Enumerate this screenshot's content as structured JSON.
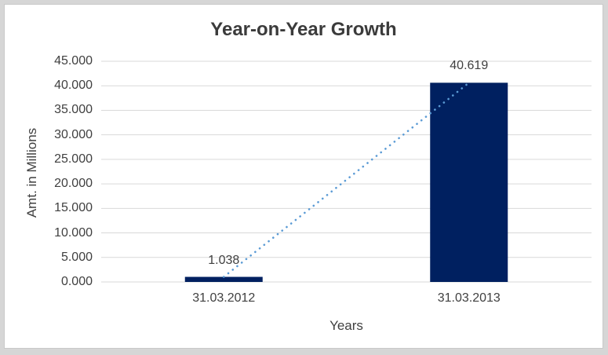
{
  "chart_data": {
    "type": "bar",
    "title": "Year-on-Year Growth",
    "xlabel": "Years",
    "ylabel": "Amt. in Millions",
    "categories": [
      "31.03.2012",
      "31.03.2013"
    ],
    "values": [
      1.038,
      40.619
    ],
    "data_labels": [
      "1.038",
      "40.619"
    ],
    "ylim": [
      0,
      45
    ],
    "ytick_step": 5,
    "ytick_labels": [
      "0.000",
      "5.000",
      "10.000",
      "15.000",
      "20.000",
      "25.000",
      "30.000",
      "35.000",
      "40.000",
      "45.000"
    ],
    "grid": true,
    "legend": "none",
    "trendline": {
      "type": "linear-dotted",
      "connects": "bar-tops",
      "from_value": 1.038,
      "to_value": 40.619,
      "color": "#5B9BD5"
    },
    "colors": {
      "bar": "#002060",
      "trendline": "#5B9BD5",
      "gridline": "#D9D9D9",
      "axis_line": "#D9D9D9",
      "title_text": "#3B3B3B",
      "axis_text": "#404040",
      "label_text": "#404040",
      "frame": "#D6D6D6",
      "background": "#FFFFFF"
    }
  }
}
